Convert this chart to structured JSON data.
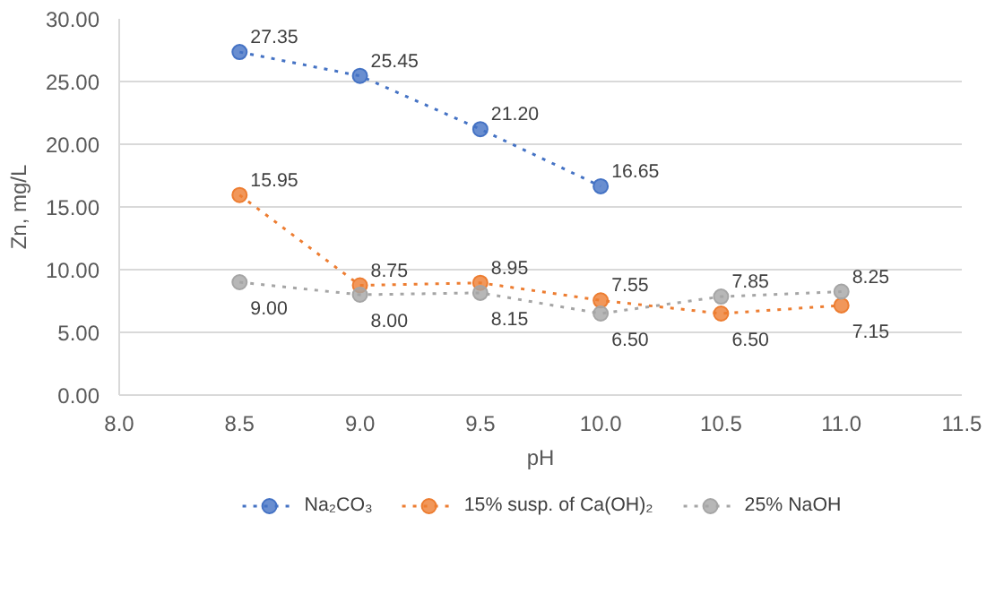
{
  "chart_data": {
    "type": "line",
    "xlabel": "pH",
    "ylabel": "Zn, mg/L",
    "x": [
      8.5,
      9.0,
      9.5,
      10.0,
      10.5,
      11.0
    ],
    "series": [
      {
        "name": "Na₂CO₃",
        "color": "#4472c4",
        "values": [
          27.35,
          25.45,
          21.2,
          16.65,
          null,
          null
        ],
        "value_labels": [
          "27.35",
          "25.45",
          "21.20",
          "16.65",
          null,
          null
        ]
      },
      {
        "name": "15% susp. of Ca(OH)₂",
        "color": "#ed7d31",
        "values": [
          15.95,
          8.75,
          8.95,
          7.55,
          6.5,
          7.15
        ],
        "value_labels": [
          "15.95",
          "8.75",
          "8.95",
          "7.55",
          "6.50",
          "7.15"
        ]
      },
      {
        "name": "25% NaOH",
        "color": "#a5a5a5",
        "values": [
          9.0,
          8.0,
          8.15,
          6.5,
          7.85,
          8.25
        ],
        "value_labels": [
          "9.00",
          "8.00",
          "8.15",
          "6.50",
          "7.85",
          "8.25"
        ]
      }
    ],
    "xlim": [
      8.0,
      11.5
    ],
    "xticks": [
      {
        "value": 8.0,
        "label": "8.0"
      },
      {
        "value": 8.5,
        "label": "8.5"
      },
      {
        "value": 9.0,
        "label": "9.0"
      },
      {
        "value": 9.5,
        "label": "9.5"
      },
      {
        "value": 10.0,
        "label": "10.0"
      },
      {
        "value": 10.5,
        "label": "10.5"
      },
      {
        "value": 11.0,
        "label": "11.0"
      },
      {
        "value": 11.5,
        "label": "11.5"
      }
    ],
    "ylim": [
      0,
      30
    ],
    "yticks": [
      {
        "value": 0,
        "label": "0.00"
      },
      {
        "value": 5,
        "label": "5.00"
      },
      {
        "value": 10,
        "label": "10.00"
      },
      {
        "value": 15,
        "label": "15.00"
      },
      {
        "value": 20,
        "label": "20.00"
      },
      {
        "value": 25,
        "label": "25.00"
      },
      {
        "value": 30,
        "label": "30.00"
      }
    ],
    "grid": "y",
    "legend": "bottom",
    "marker": "circle",
    "line_style": "dotted",
    "data_labels": true
  }
}
